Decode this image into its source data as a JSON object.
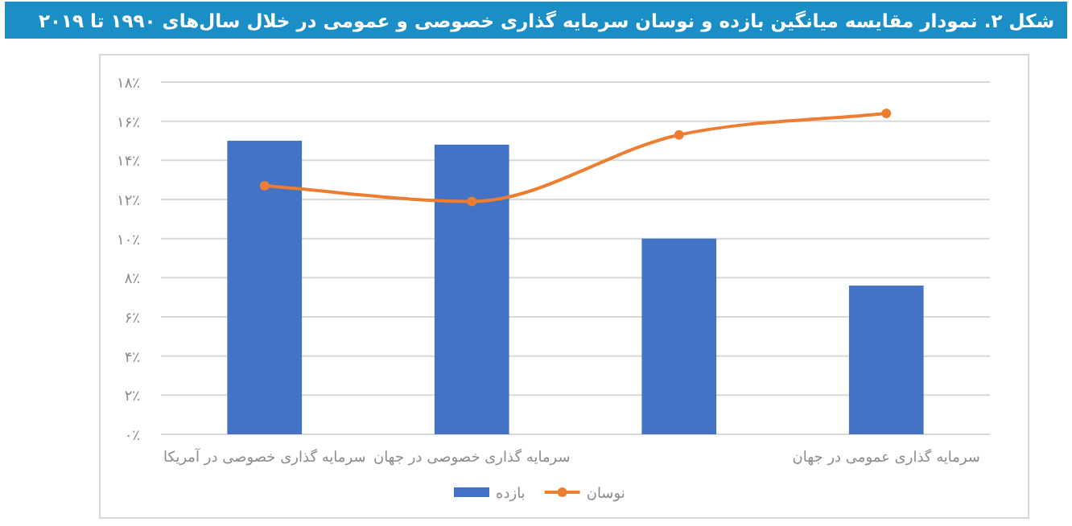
{
  "chart_data": {
    "type": "bar",
    "title": "شکل ۲. نمودار مقایسه میانگین بازده و نوسان سرمایه گذاری خصوصی و عمومی در خلال سال‌های ۱۹۹۰ تا ۲۰۱۹",
    "categories": [
      "سرمایه گذاری خصوصی در آمریکا",
      "سرمایه گذاری خصوصی در جهان",
      null,
      "سرمایه گذاری عمومی در جهان"
    ],
    "series": [
      {
        "name": "بازده",
        "color": "#4472c4",
        "values": [
          15.0,
          14.8,
          10.0,
          7.6
        ]
      },
      {
        "name": "نوسان",
        "type": "line",
        "color": "#ed7d31",
        "marker": "circle",
        "values": [
          12.7,
          11.9,
          15.3,
          16.4
        ]
      }
    ],
    "ylim": [
      0,
      18
    ],
    "yticks": [
      {
        "value": 0,
        "label": "۰٪"
      },
      {
        "value": 2,
        "label": "۲٪"
      },
      {
        "value": 4,
        "label": "۴٪"
      },
      {
        "value": 6,
        "label": "۶٪"
      },
      {
        "value": 8,
        "label": "۸٪"
      },
      {
        "value": 10,
        "label": "۱۰٪"
      },
      {
        "value": 12,
        "label": "۱۲٪"
      },
      {
        "value": 14,
        "label": "۱۴٪"
      },
      {
        "value": 16,
        "label": "۱۶٪"
      },
      {
        "value": 18,
        "label": "۱۸٪"
      }
    ],
    "grid": "y",
    "legend": "bottom"
  }
}
